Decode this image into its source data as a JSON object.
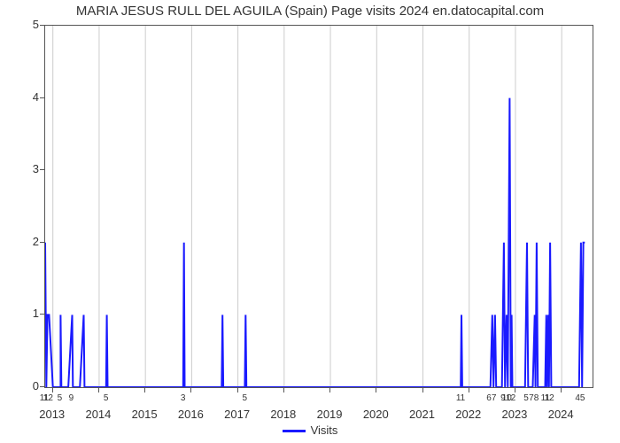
{
  "chart": {
    "type": "line",
    "title": "MARIA JESUS RULL DEL AGUILA (Spain) Page visits 2024 en.datocapital.com",
    "title_fontsize": 15,
    "background_color": "#ffffff",
    "grid_color": "#cccccc",
    "axis_color": "#555555",
    "line_color": "#1a1aff",
    "line_width": 2,
    "ylim": [
      0,
      5
    ],
    "ytick_step": 1,
    "yticks": [
      0,
      1,
      2,
      3,
      4,
      5
    ],
    "years_for_major_ticks_and_grid": [
      2013,
      2014,
      2015,
      2016,
      2017,
      2018,
      2019,
      2020,
      2021,
      2022,
      2023,
      2024
    ],
    "x_range_months": {
      "start": {
        "year": 2012,
        "month": 11
      },
      "end": {
        "year": 2024,
        "month": 9
      }
    },
    "x_sub_labels": [
      {
        "year": 2012,
        "month": 11,
        "text": "11"
      },
      {
        "year": 2012,
        "month": 12,
        "text": "12"
      },
      {
        "year": 2013,
        "month": 3,
        "text": "5"
      },
      {
        "year": 2013,
        "month": 6,
        "text": "9"
      },
      {
        "year": 2014,
        "month": 3,
        "text": "5"
      },
      {
        "year": 2015,
        "month": 11,
        "text": "3"
      },
      {
        "year": 2017,
        "month": 3,
        "text": "5"
      },
      {
        "year": 2021,
        "month": 11,
        "text": "11"
      },
      {
        "year": 2022,
        "month": 7,
        "text": "67"
      },
      {
        "year": 2022,
        "month": 10,
        "text": "9"
      },
      {
        "year": 2022,
        "month": 11,
        "text": "10"
      },
      {
        "year": 2022,
        "month": 12,
        "text": "12"
      },
      {
        "year": 2023,
        "month": 4,
        "text": "5"
      },
      {
        "year": 2023,
        "month": 6,
        "text": "78"
      },
      {
        "year": 2023,
        "month": 9,
        "text": "11"
      },
      {
        "year": 2023,
        "month": 10,
        "text": "12"
      },
      {
        "year": 2024,
        "month": 6,
        "text": "45"
      }
    ],
    "series": [
      {
        "year": 2012,
        "month": 11,
        "v": 2
      },
      {
        "year": 2012,
        "month": 11.3,
        "v": 0
      },
      {
        "year": 2012,
        "month": 11.6,
        "v": 1
      },
      {
        "year": 2012,
        "month": 12,
        "v": 1
      },
      {
        "year": 2013,
        "month": 1,
        "v": 0
      },
      {
        "year": 2013,
        "month": 3,
        "v": 0
      },
      {
        "year": 2013,
        "month": 3,
        "v": 1
      },
      {
        "year": 2013,
        "month": 3.2,
        "v": 0
      },
      {
        "year": 2013,
        "month": 5,
        "v": 0
      },
      {
        "year": 2013,
        "month": 6,
        "v": 1
      },
      {
        "year": 2013,
        "month": 6.2,
        "v": 0
      },
      {
        "year": 2013,
        "month": 8,
        "v": 0
      },
      {
        "year": 2013,
        "month": 9,
        "v": 1
      },
      {
        "year": 2013,
        "month": 9.2,
        "v": 0
      },
      {
        "year": 2014,
        "month": 2.8,
        "v": 0
      },
      {
        "year": 2014,
        "month": 3,
        "v": 1
      },
      {
        "year": 2014,
        "month": 3.2,
        "v": 0
      },
      {
        "year": 2015,
        "month": 10.8,
        "v": 0
      },
      {
        "year": 2015,
        "month": 11,
        "v": 2
      },
      {
        "year": 2015,
        "month": 11.2,
        "v": 0
      },
      {
        "year": 2016,
        "month": 8.8,
        "v": 0
      },
      {
        "year": 2016,
        "month": 9,
        "v": 1
      },
      {
        "year": 2016,
        "month": 9.2,
        "v": 0
      },
      {
        "year": 2017,
        "month": 2.8,
        "v": 0
      },
      {
        "year": 2017,
        "month": 3,
        "v": 1
      },
      {
        "year": 2017,
        "month": 3.2,
        "v": 0
      },
      {
        "year": 2021,
        "month": 10.8,
        "v": 0
      },
      {
        "year": 2021,
        "month": 11,
        "v": 1
      },
      {
        "year": 2021,
        "month": 11.2,
        "v": 0
      },
      {
        "year": 2022,
        "month": 6.5,
        "v": 0
      },
      {
        "year": 2022,
        "month": 7,
        "v": 1
      },
      {
        "year": 2022,
        "month": 7.3,
        "v": 0
      },
      {
        "year": 2022,
        "month": 7.7,
        "v": 1
      },
      {
        "year": 2022,
        "month": 8,
        "v": 0
      },
      {
        "year": 2022,
        "month": 9.5,
        "v": 0
      },
      {
        "year": 2022,
        "month": 10,
        "v": 2
      },
      {
        "year": 2022,
        "month": 10.3,
        "v": 0
      },
      {
        "year": 2022,
        "month": 10.7,
        "v": 1
      },
      {
        "year": 2022,
        "month": 11,
        "v": 0
      },
      {
        "year": 2022,
        "month": 11.5,
        "v": 4
      },
      {
        "year": 2022,
        "month": 11.8,
        "v": 0
      },
      {
        "year": 2022,
        "month": 12,
        "v": 1
      },
      {
        "year": 2022,
        "month": 12.2,
        "v": 0
      },
      {
        "year": 2023,
        "month": 3.5,
        "v": 0
      },
      {
        "year": 2023,
        "month": 4,
        "v": 2
      },
      {
        "year": 2023,
        "month": 4.3,
        "v": 0
      },
      {
        "year": 2023,
        "month": 5.5,
        "v": 0
      },
      {
        "year": 2023,
        "month": 6,
        "v": 1
      },
      {
        "year": 2023,
        "month": 6.2,
        "v": 0
      },
      {
        "year": 2023,
        "month": 6.5,
        "v": 2
      },
      {
        "year": 2023,
        "month": 6.8,
        "v": 0
      },
      {
        "year": 2023,
        "month": 8.7,
        "v": 0
      },
      {
        "year": 2023,
        "month": 9,
        "v": 1
      },
      {
        "year": 2023,
        "month": 9.2,
        "v": 0
      },
      {
        "year": 2023,
        "month": 9.5,
        "v": 1
      },
      {
        "year": 2023,
        "month": 9.7,
        "v": 0
      },
      {
        "year": 2023,
        "month": 10,
        "v": 2
      },
      {
        "year": 2023,
        "month": 10.3,
        "v": 0
      },
      {
        "year": 2024,
        "month": 5.5,
        "v": 0
      },
      {
        "year": 2024,
        "month": 6,
        "v": 2
      },
      {
        "year": 2024,
        "month": 6.3,
        "v": 0
      },
      {
        "year": 2024,
        "month": 6.6,
        "v": 2
      },
      {
        "year": 2024,
        "month": 7,
        "v": 2
      }
    ],
    "legend": {
      "label": "Visits"
    }
  }
}
